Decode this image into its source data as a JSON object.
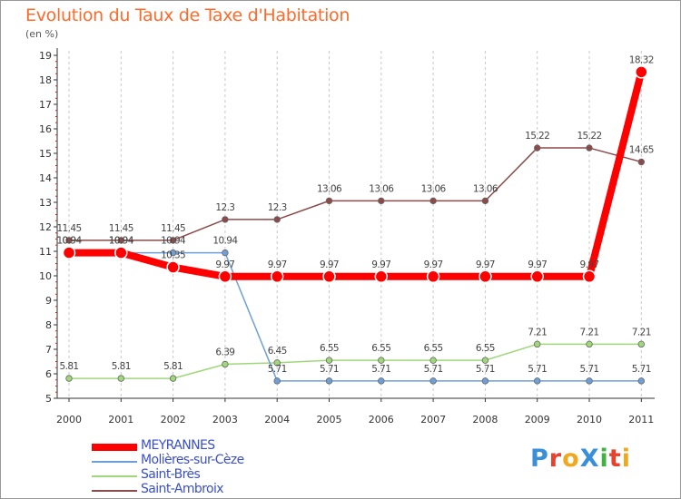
{
  "header": {
    "title": "Evolution du Taux de Taxe d'Habitation",
    "subtitle": "(en %)"
  },
  "logo": {
    "text": "ProXiti",
    "letters": [
      "P",
      "r",
      "o",
      "X",
      "i",
      "t",
      "i"
    ],
    "colors": [
      "#3b8fd8",
      "#e8412c",
      "#f2a81d",
      "#3b8fd8",
      "#3fb33f",
      "#e8412c",
      "#f2a81d"
    ]
  },
  "chart_data": {
    "type": "line",
    "x": [
      "2000",
      "2001",
      "2002",
      "2003",
      "2004",
      "2005",
      "2006",
      "2007",
      "2008",
      "2009",
      "2010",
      "2011"
    ],
    "ylim": [
      5,
      19
    ],
    "yticks": [
      5,
      6,
      7,
      8,
      9,
      10,
      11,
      12,
      13,
      14,
      15,
      16,
      17,
      18,
      19
    ],
    "grid": {
      "x": true,
      "y": false,
      "style": "dashed"
    },
    "legend_placement": "bottom-left",
    "series": [
      {
        "name": "MEYRANNES",
        "color": "#ff0000",
        "line_width": 8,
        "values": [
          10.94,
          10.94,
          10.35,
          9.97,
          9.97,
          9.97,
          9.97,
          9.97,
          9.97,
          9.97,
          9.97,
          18.32
        ],
        "labels": [
          "10.94",
          "10.94",
          "10.35",
          "9.97",
          "9.97",
          "9.97",
          "9.97",
          "9.97",
          "9.97",
          "9.97",
          "9.97",
          "18.32"
        ]
      },
      {
        "name": "Molières-sur-Cèze",
        "color": "#6f9fd8",
        "line_width": 1.5,
        "values": [
          10.94,
          10.94,
          10.94,
          10.94,
          5.71,
          5.71,
          5.71,
          5.71,
          5.71,
          5.71,
          5.71,
          5.71
        ],
        "labels": [
          "10.94",
          "10.94",
          "10.94",
          "10.94",
          "5.71",
          "5.71",
          "5.71",
          "5.71",
          "5.71",
          "5.71",
          "5.71",
          "5.71"
        ]
      },
      {
        "name": "Saint-Brès",
        "color": "#9fd87a",
        "line_width": 1.5,
        "values": [
          5.81,
          5.81,
          5.81,
          6.39,
          6.45,
          6.55,
          6.55,
          6.55,
          6.55,
          7.21,
          7.21,
          7.21
        ],
        "labels": [
          "5.81",
          "5.81",
          "5.81",
          "6.39",
          "6.45",
          "6.55",
          "6.55",
          "6.55",
          "6.55",
          "7.21",
          "7.21",
          "7.21"
        ]
      },
      {
        "name": "Saint-Ambroix",
        "color": "#8c4a4a",
        "line_width": 1.5,
        "values": [
          11.45,
          11.45,
          11.45,
          12.3,
          12.3,
          13.06,
          13.06,
          13.06,
          13.06,
          15.22,
          15.22,
          14.65
        ],
        "labels": [
          "11.45",
          "11.45",
          "11.45",
          "12.3",
          "12.3",
          "13.06",
          "13.06",
          "13.06",
          "13.06",
          "15.22",
          "15.22",
          "14.65"
        ]
      }
    ]
  }
}
